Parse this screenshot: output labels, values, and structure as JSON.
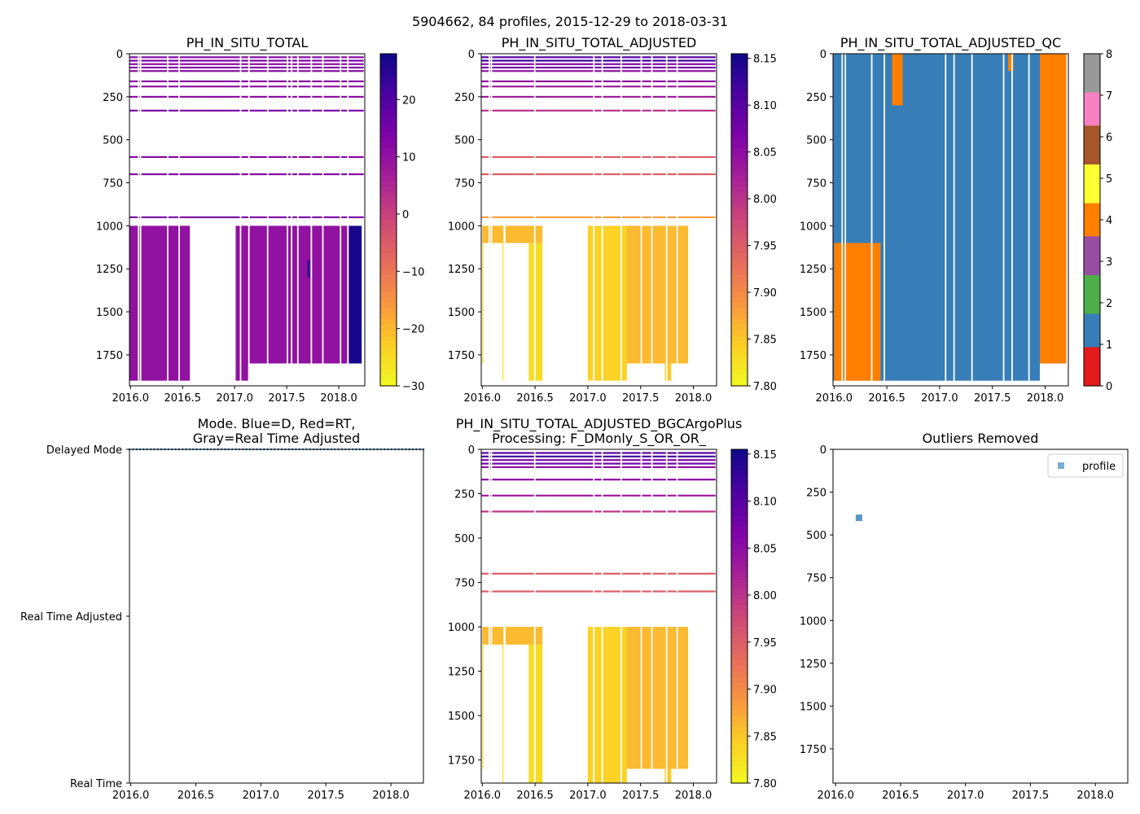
{
  "figure": {
    "suptitle": "5904662, 84 profiles, 2015-12-29 to 2018-03-31"
  },
  "chart_data": [
    {
      "id": "p1",
      "type": "heatmap",
      "title": "PH_IN_SITU_TOTAL",
      "xlabel": "",
      "ylabel": "",
      "xlim": [
        2015.99,
        2018.25
      ],
      "ylim": [
        1930,
        0
      ],
      "xticks": [
        "2016.0",
        "2016.5",
        "2017.0",
        "2017.5",
        "2018.0"
      ],
      "yticks": [
        "0",
        "250",
        "500",
        "750",
        "1000",
        "1250",
        "1500",
        "1750"
      ],
      "colormap": "plasma_r",
      "colorbar": {
        "range": [
          -30,
          28
        ],
        "ticks": [
          "20",
          "10",
          "0",
          "−10",
          "−20",
          "−30"
        ]
      },
      "regions": [
        {
          "x0": 2015.99,
          "x1": 2016.57,
          "y0": 1000,
          "y1": 1900,
          "value": 10
        },
        {
          "x0": 2017.01,
          "x1": 2018.1,
          "y0": 1000,
          "y1": 1800,
          "value": 10
        },
        {
          "x0": 2017.01,
          "x1": 2017.13,
          "y0": 1800,
          "y1": 1900,
          "value": 10
        },
        {
          "x0": 2017.7,
          "x1": 2017.72,
          "y0": 1200,
          "y1": 1300,
          "value": 25
        },
        {
          "x0": 2018.1,
          "x1": 2018.22,
          "y0": 1000,
          "y1": 1800,
          "value": 27
        }
      ],
      "gaps": [
        2016.07,
        2016.09,
        2016.35,
        2016.46,
        2017.05,
        2017.13,
        2017.31,
        2017.5,
        2017.54,
        2017.6,
        2017.73,
        2017.84,
        2018.01,
        2018.08
      ],
      "bands": [
        {
          "depth": 20,
          "value": 12
        },
        {
          "depth": 40,
          "value": 14
        },
        {
          "depth": 60,
          "value": 11
        },
        {
          "depth": 80,
          "value": 13
        },
        {
          "depth": 100,
          "value": 12
        },
        {
          "depth": 160,
          "value": 12
        },
        {
          "depth": 190,
          "value": 10
        },
        {
          "depth": 250,
          "value": 11
        },
        {
          "depth": 330,
          "value": 14
        },
        {
          "depth": 600,
          "value": 12
        },
        {
          "depth": 700,
          "value": 12
        },
        {
          "depth": 950,
          "value": 14
        }
      ]
    },
    {
      "id": "p2",
      "type": "heatmap",
      "title": "PH_IN_SITU_TOTAL_ADJUSTED",
      "xlabel": "",
      "ylabel": "",
      "xlim": [
        2015.99,
        2018.22
      ],
      "ylim": [
        1930,
        0
      ],
      "xticks": [
        "2016.0",
        "2016.5",
        "2017.0",
        "2017.5",
        "2018.0"
      ],
      "yticks": [
        "0",
        "250",
        "500",
        "750",
        "1000",
        "1250",
        "1500",
        "1750"
      ],
      "colormap": "plasma_r",
      "colorbar": {
        "range": [
          7.8,
          8.155
        ],
        "ticks": [
          "8.15",
          "8.10",
          "8.05",
          "8.00",
          "7.95",
          "7.90",
          "7.85",
          "7.80"
        ]
      },
      "regions": [
        {
          "x0": 2016.0,
          "x1": 2016.2,
          "y0": 1000,
          "y1": 1100,
          "value": 7.86
        },
        {
          "x0": 2016.22,
          "x1": 2016.57,
          "y0": 1000,
          "y1": 1100,
          "value": 7.86
        },
        {
          "x0": 2016.0,
          "x1": 2016.01,
          "y0": 1100,
          "y1": 1800,
          "value": 7.82
        },
        {
          "x0": 2016.19,
          "x1": 2016.2,
          "y0": 1100,
          "y1": 1900,
          "value": 7.82
        },
        {
          "x0": 2016.44,
          "x1": 2016.57,
          "y0": 1100,
          "y1": 1900,
          "value": 7.83
        },
        {
          "x0": 2017.0,
          "x1": 2017.37,
          "y0": 1000,
          "y1": 1900,
          "value": 7.84
        },
        {
          "x0": 2017.37,
          "x1": 2017.95,
          "y0": 1000,
          "y1": 1800,
          "value": 7.86
        },
        {
          "x0": 2017.73,
          "x1": 2017.79,
          "y0": 1800,
          "y1": 1900,
          "value": 7.85
        }
      ],
      "gaps": [
        2016.06,
        2016.08,
        2016.49,
        2017.05,
        2017.13,
        2017.31,
        2017.5,
        2017.6,
        2017.74,
        2017.84
      ],
      "bands": [
        {
          "depth": 20,
          "value": 8.1
        },
        {
          "depth": 40,
          "value": 8.12
        },
        {
          "depth": 60,
          "value": 8.06
        },
        {
          "depth": 80,
          "value": 8.08
        },
        {
          "depth": 100,
          "value": 8.05
        },
        {
          "depth": 160,
          "value": 8.05
        },
        {
          "depth": 190,
          "value": 8.03
        },
        {
          "depth": 250,
          "value": 8.03
        },
        {
          "depth": 330,
          "value": 8.0
        },
        {
          "depth": 600,
          "value": 7.95
        },
        {
          "depth": 700,
          "value": 7.95
        },
        {
          "depth": 950,
          "value": 7.88
        }
      ]
    },
    {
      "id": "p3",
      "type": "heatmap",
      "title": "PH_IN_SITU_TOTAL_ADJUSTED_QC",
      "xlabel": "",
      "ylabel": "",
      "xlim": [
        2015.99,
        2018.22
      ],
      "ylim": [
        1930,
        0
      ],
      "xticks": [
        "2016.0",
        "2016.5",
        "2017.0",
        "2017.5",
        "2018.0"
      ],
      "yticks": [
        "0",
        "250",
        "500",
        "750",
        "1000",
        "1250",
        "1500",
        "1750"
      ],
      "colorbar": {
        "range": [
          0,
          8
        ],
        "ticks": [
          "0",
          "1",
          "2",
          "3",
          "4",
          "5",
          "6",
          "7",
          "8"
        ],
        "colors": [
          "#e41a1c",
          "#377eb8",
          "#4daf4a",
          "#984ea3",
          "#ff7f00",
          "#ffff33",
          "#a65628",
          "#f781bf",
          "#999999"
        ]
      },
      "regions": [
        {
          "x0": 2015.99,
          "x1": 2017.95,
          "y0": 0,
          "y1": 1900,
          "qc": 1
        },
        {
          "x0": 2016.0,
          "x1": 2016.44,
          "y0": 1100,
          "y1": 1900,
          "qc": 4
        },
        {
          "x0": 2016.55,
          "x1": 2016.65,
          "y0": 0,
          "y1": 300,
          "qc": 4
        },
        {
          "x0": 2017.65,
          "x1": 2017.7,
          "y0": 0,
          "y1": 100,
          "qc": 4
        },
        {
          "x0": 2017.95,
          "x1": 2018.2,
          "y0": 0,
          "y1": 1800,
          "qc": 4
        }
      ],
      "gaps": [
        2016.07,
        2016.1,
        2016.35,
        2016.47,
        2017.05,
        2017.13,
        2017.3,
        2017.6,
        2017.68,
        2017.84
      ],
      "legend": "none"
    },
    {
      "id": "p4",
      "type": "scatter",
      "title": "Mode. Blue=D, Red=RT,\nGray=Real Time Adjusted",
      "xlabel": "",
      "ylabel": "",
      "xlim": [
        2015.99,
        2018.25
      ],
      "ylim": [
        0,
        2
      ],
      "xticks": [
        "2016.0",
        "2016.5",
        "2017.0",
        "2017.5",
        "2018.0"
      ],
      "yticks": [
        "Real Time",
        "Real Time Adjusted",
        "Delayed Mode"
      ],
      "series": [
        {
          "name": "Delayed Mode",
          "color": "#1f77b4",
          "y": 2,
          "x_start": 2015.99,
          "x_end": 2018.25,
          "count": 84
        }
      ]
    },
    {
      "id": "p5",
      "type": "heatmap",
      "title": "PH_IN_SITU_TOTAL_ADJUSTED_BGCArgoPlus\nProcessing: F_DMonly_S_OR_OR_",
      "xlabel": "",
      "ylabel": "",
      "xlim": [
        2015.99,
        2018.22
      ],
      "ylim": [
        1880,
        0
      ],
      "xticks": [
        "2016.0",
        "2016.5",
        "2017.0",
        "2017.5",
        "2018.0"
      ],
      "yticks": [
        "0",
        "250",
        "500",
        "750",
        "1000",
        "1250",
        "1500",
        "1750"
      ],
      "colormap": "plasma_r",
      "colorbar": {
        "range": [
          7.8,
          8.155
        ],
        "ticks": [
          "8.15",
          "8.10",
          "8.05",
          "8.00",
          "7.95",
          "7.90",
          "7.85",
          "7.80"
        ]
      },
      "regions": [
        {
          "x0": 2016.0,
          "x1": 2016.2,
          "y0": 1000,
          "y1": 1100,
          "value": 7.86
        },
        {
          "x0": 2016.22,
          "x1": 2016.57,
          "y0": 1000,
          "y1": 1100,
          "value": 7.86
        },
        {
          "x0": 2016.0,
          "x1": 2016.01,
          "y0": 1100,
          "y1": 1800,
          "value": 7.82
        },
        {
          "x0": 2016.19,
          "x1": 2016.2,
          "y0": 1100,
          "y1": 1900,
          "value": 7.82
        },
        {
          "x0": 2016.44,
          "x1": 2016.57,
          "y0": 1100,
          "y1": 1900,
          "value": 7.83
        },
        {
          "x0": 2017.0,
          "x1": 2017.37,
          "y0": 1000,
          "y1": 1900,
          "value": 7.84
        },
        {
          "x0": 2017.37,
          "x1": 2017.95,
          "y0": 1000,
          "y1": 1800,
          "value": 7.86
        },
        {
          "x0": 2017.73,
          "x1": 2017.79,
          "y0": 1800,
          "y1": 1900,
          "value": 7.85
        }
      ],
      "gaps": [
        2016.06,
        2016.08,
        2016.49,
        2017.05,
        2017.13,
        2017.31,
        2017.5,
        2017.6,
        2017.74,
        2017.84
      ],
      "bands": [
        {
          "depth": 20,
          "value": 8.1
        },
        {
          "depth": 40,
          "value": 8.12
        },
        {
          "depth": 60,
          "value": 8.06
        },
        {
          "depth": 80,
          "value": 8.08
        },
        {
          "depth": 100,
          "value": 8.05
        },
        {
          "depth": 170,
          "value": 8.05
        },
        {
          "depth": 260,
          "value": 8.03
        },
        {
          "depth": 350,
          "value": 8.0
        },
        {
          "depth": 700,
          "value": 7.95
        },
        {
          "depth": 800,
          "value": 7.95
        }
      ]
    },
    {
      "id": "p6",
      "type": "scatter",
      "title": "Outliers Removed",
      "xlabel": "",
      "ylabel": "",
      "xlim": [
        2015.98,
        2018.25
      ],
      "ylim": [
        1950,
        0
      ],
      "xticks": [
        "2016.0",
        "2016.5",
        "2017.0",
        "2017.5",
        "2018.0"
      ],
      "yticks": [
        "0",
        "250",
        "500",
        "750",
        "1000",
        "1250",
        "1500",
        "1750"
      ],
      "series": [
        {
          "name": "profile",
          "color": "#1f77b4",
          "points": [
            {
              "x": 2016.18,
              "y": 400
            }
          ]
        }
      ],
      "legend": "top-right"
    }
  ]
}
